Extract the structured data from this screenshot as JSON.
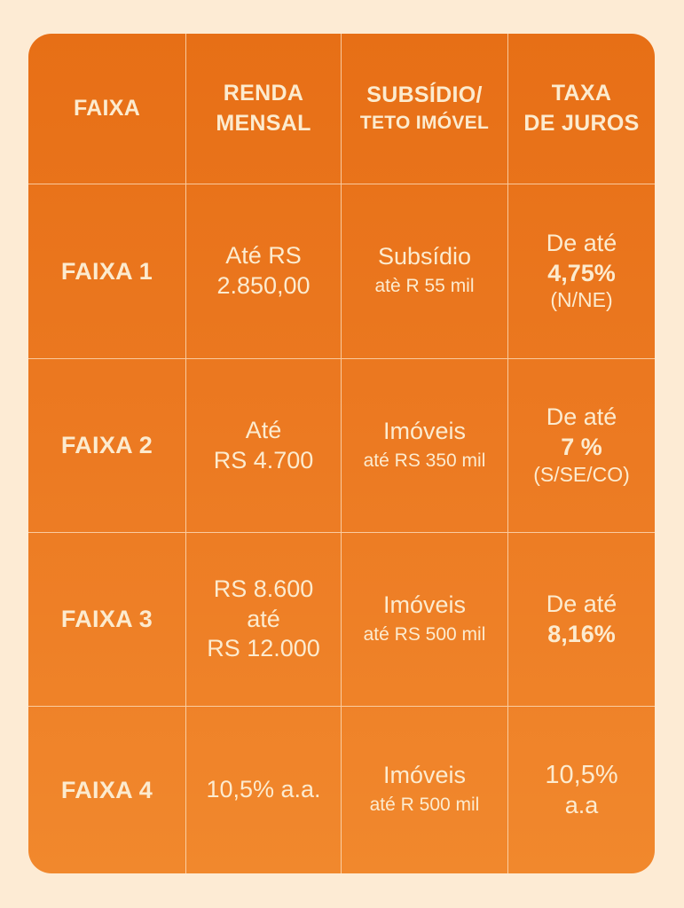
{
  "colors": {
    "background": "#FDEBD4",
    "table_top": "#E76F16",
    "table_bottom": "#F1882D",
    "text": "#FCEBCF"
  },
  "headers": {
    "faixa": "FAIXA",
    "renda_line1": "RENDA",
    "renda_line2": "MENSAL",
    "subsidio_line1": "SUBSÍDIO/",
    "subsidio_line2": "TETO IMÓVEL",
    "taxa_line1": "TAXA",
    "taxa_line2": "DE JUROS"
  },
  "rows": [
    {
      "faixa": "FAIXA 1",
      "renda": [
        "Até RS",
        "2.850,00"
      ],
      "subsidio_main": "Subsídio",
      "subsidio_detail": "atè R 55 mil",
      "taxa_prefix": "De até",
      "taxa_value": "4,75%",
      "taxa_region": "(N/NE)"
    },
    {
      "faixa": "FAIXA 2",
      "renda": [
        "Até",
        "RS 4.700"
      ],
      "subsidio_main": "Imóveis",
      "subsidio_detail": "até RS 350 mil",
      "taxa_prefix": "De até",
      "taxa_value": "7 %",
      "taxa_region": "(S/SE/CO)"
    },
    {
      "faixa": "FAIXA 3",
      "renda": [
        "RS 8.600",
        "até",
        "RS 12.000"
      ],
      "subsidio_main": "Imóveis",
      "subsidio_detail": "até RS 500 mil",
      "taxa_prefix": "De até",
      "taxa_value": "8,16%"
    },
    {
      "faixa": "FAIXA 4",
      "renda": [
        "10,5% a.a."
      ],
      "subsidio_main": "Imóveis",
      "subsidio_detail": "até R 500 mil",
      "taxa_value_plain": "10,5%",
      "taxa_suffix": "a.a"
    }
  ]
}
